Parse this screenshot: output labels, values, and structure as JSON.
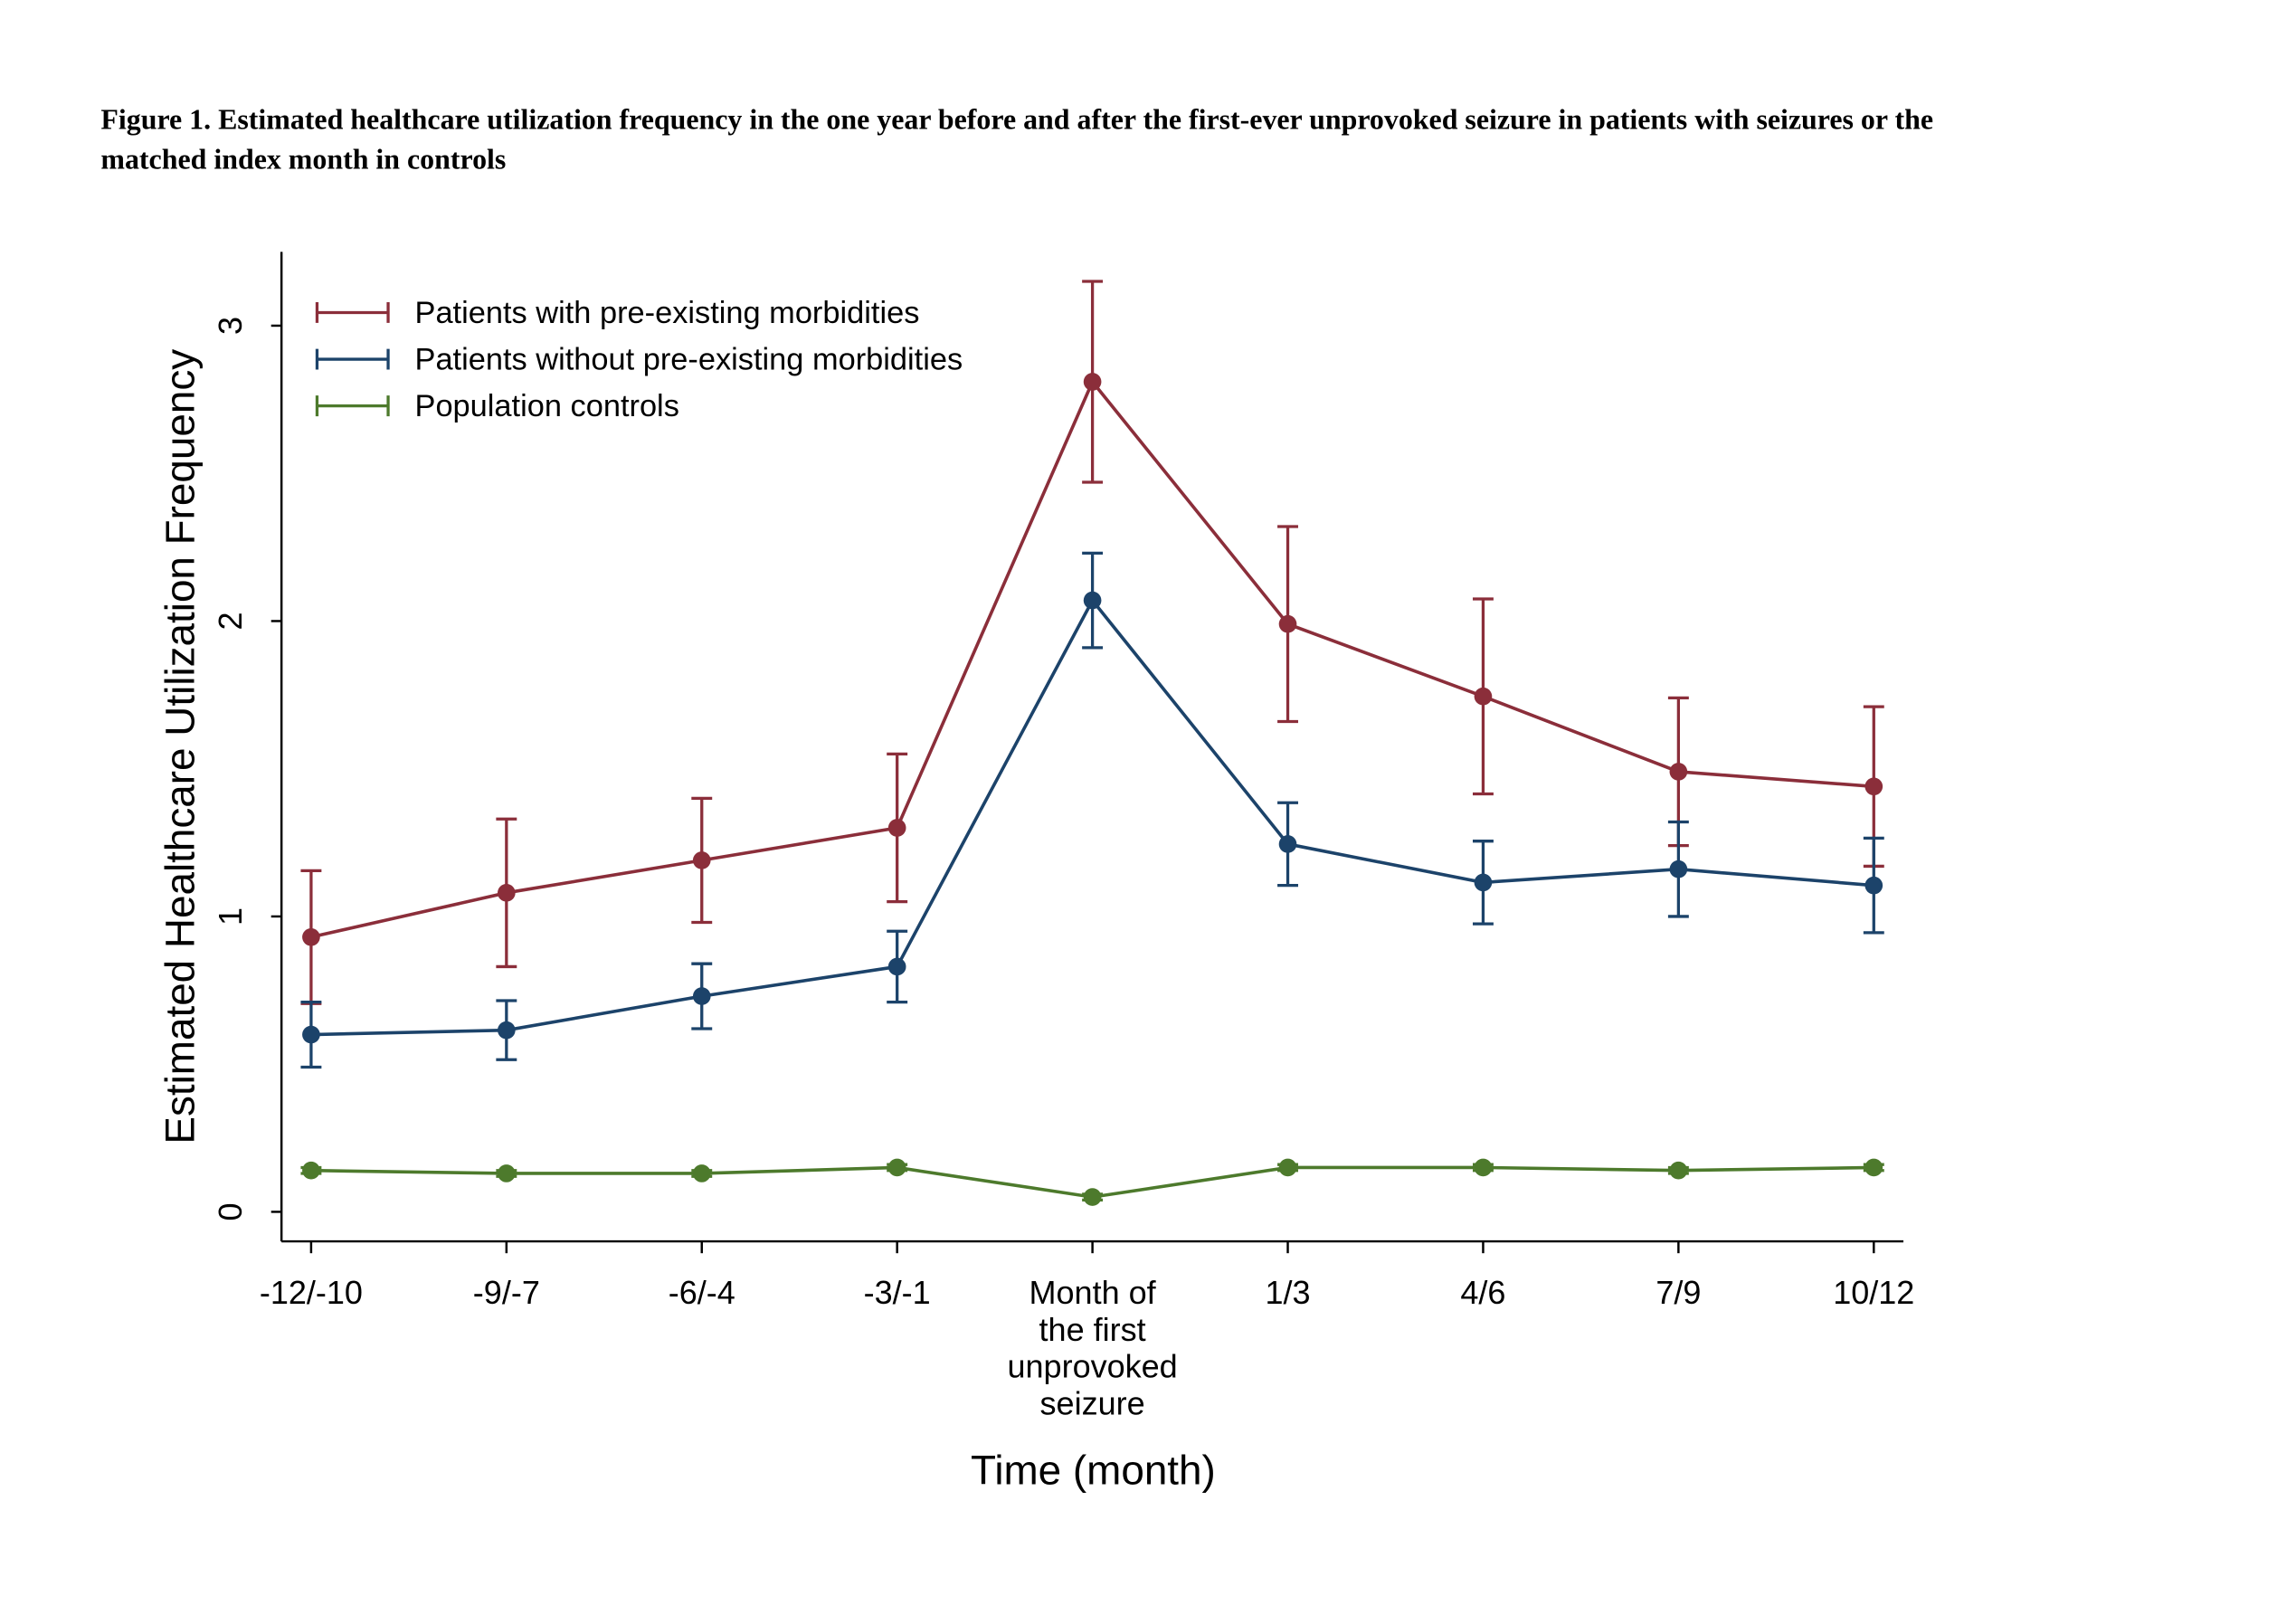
{
  "chart_data": {
    "type": "line",
    "title": "Figure 1. Estimated healthcare utilization frequency in the one year before and after the first-ever unprovoked seizure in patients with seizures or the matched index month in controls",
    "x_label": "Time (month)",
    "y_label": "Estimated Healthcare Utilization Frequency",
    "categories": [
      "-12/-10",
      "-9/-7",
      "-6/-4",
      "-3/-1",
      "Month of\nthe first\nunprovoked\nseizure",
      "1/3",
      "4/6",
      "7/9",
      "10/12"
    ],
    "ylim": [
      -0.1,
      3.25
    ],
    "yticks": [
      0,
      1,
      2,
      3
    ],
    "legend": "top-left",
    "series": [
      {
        "name": "Patients with pre-existing morbidities",
        "color": "#8b2e3a",
        "values": [
          0.93,
          1.08,
          1.19,
          1.3,
          2.81,
          1.99,
          1.745,
          1.49,
          1.44
        ],
        "errors": [
          0.225,
          0.25,
          0.21,
          0.25,
          0.34,
          0.33,
          0.33,
          0.25,
          0.27
        ]
      },
      {
        "name": "Patients without pre-existing morbidities",
        "color": "#1c436a",
        "values": [
          0.6,
          0.615,
          0.73,
          0.83,
          2.07,
          1.245,
          1.115,
          1.16,
          1.105
        ],
        "errors": [
          0.11,
          0.1,
          0.11,
          0.12,
          0.16,
          0.14,
          0.14,
          0.16,
          0.16
        ]
      },
      {
        "name": "Population controls",
        "color": "#4d7a2c",
        "values": [
          0.14,
          0.13,
          0.13,
          0.15,
          0.05,
          0.15,
          0.15,
          0.14,
          0.15
        ],
        "errors": [
          0.01,
          0.01,
          0.01,
          0.01,
          0.01,
          0.01,
          0.01,
          0.01,
          0.01
        ]
      }
    ]
  }
}
